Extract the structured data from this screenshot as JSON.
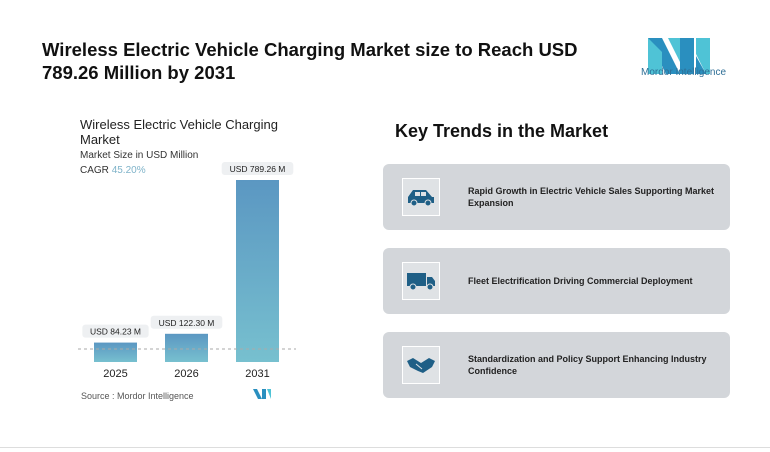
{
  "header": {
    "title": "Wireless Electric Vehicle Charging Market size to Reach USD 789.26 Million by 2031",
    "logo_text": "Mordor Intelligence"
  },
  "chart_data": {
    "type": "bar",
    "title": "Wireless Electric Vehicle Charging Market",
    "subtitle": "Market Size in USD Million",
    "cagr_label": "CAGR",
    "cagr_value": "45.20%",
    "categories": [
      "2025",
      "2026",
      "2031"
    ],
    "values": [
      84.23,
      122.3,
      789.26
    ],
    "data_labels": [
      "USD 84.23 M",
      "USD 122.30 M",
      "USD 789.26 M"
    ],
    "source": "Source :  Mordor Intelligence",
    "bar_color": "#6aaac9"
  },
  "trends": {
    "title": "Key Trends in the Market",
    "items": [
      {
        "icon": "car-icon",
        "text": "Rapid Growth in Electric Vehicle Sales Supporting Market Expansion"
      },
      {
        "icon": "truck-icon",
        "text": "Fleet Electrification Driving Commercial Deployment"
      },
      {
        "icon": "handshake-icon",
        "text": "Standardization and Policy Support Enhancing Industry Confidence"
      }
    ]
  },
  "colors": {
    "icon": "#1f5f86",
    "card": "#d3d6da"
  }
}
